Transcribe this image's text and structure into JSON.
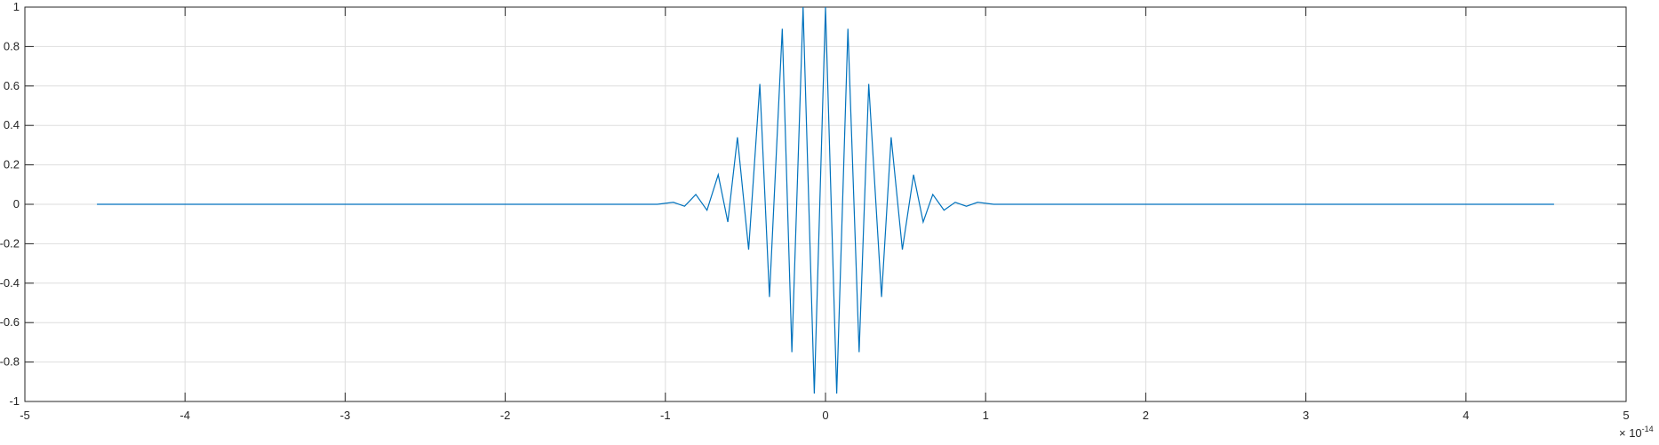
{
  "chart_data": {
    "type": "line",
    "title": "",
    "xlabel": "",
    "ylabel": "",
    "xlim": [
      -5,
      5
    ],
    "ylim": [
      -1,
      1
    ],
    "x_exponent_label": "× 10",
    "x_exponent_power": "-14",
    "xticks": [
      -5,
      -4,
      -3,
      -2,
      -1,
      0,
      1,
      2,
      3,
      4,
      5
    ],
    "xtick_labels": [
      "-5",
      "-4",
      "-3",
      "-2",
      "-1",
      "0",
      "1",
      "2",
      "3",
      "4",
      "5"
    ],
    "yticks": [
      -1,
      -0.8,
      -0.6,
      -0.4,
      -0.2,
      0,
      0.2,
      0.4,
      0.6,
      0.8,
      1
    ],
    "ytick_labels": [
      "-1",
      "-0.8",
      "-0.6",
      "-0.4",
      "-0.2",
      "0",
      "0.2",
      "0.4",
      "0.6",
      "0.8",
      "1"
    ],
    "grid": true,
    "line_color": "#0072BD",
    "series": [
      {
        "x": [
          -4.55,
          -1.05,
          -0.95,
          -0.88,
          -0.81,
          -0.74,
          -0.67,
          -0.61,
          -0.55,
          -0.48,
          -0.41,
          -0.35,
          -0.27,
          -0.21,
          -0.14,
          -0.07,
          0,
          0.07,
          0.14,
          0.21,
          0.27,
          0.35,
          0.41,
          0.48,
          0.55,
          0.61,
          0.67,
          0.74,
          0.81,
          0.88,
          0.95,
          1.05,
          4.55
        ],
        "y": [
          0,
          0,
          0.01,
          -0.01,
          0.05,
          -0.03,
          0.15,
          -0.09,
          0.34,
          -0.23,
          0.61,
          -0.47,
          0.89,
          -0.75,
          1.0,
          -0.96,
          1.0,
          -0.96,
          0.89,
          -0.75,
          0.61,
          -0.47,
          0.34,
          -0.23,
          0.15,
          -0.09,
          0.05,
          -0.03,
          0.01,
          -0.01,
          0.01,
          0,
          0
        ]
      }
    ]
  }
}
